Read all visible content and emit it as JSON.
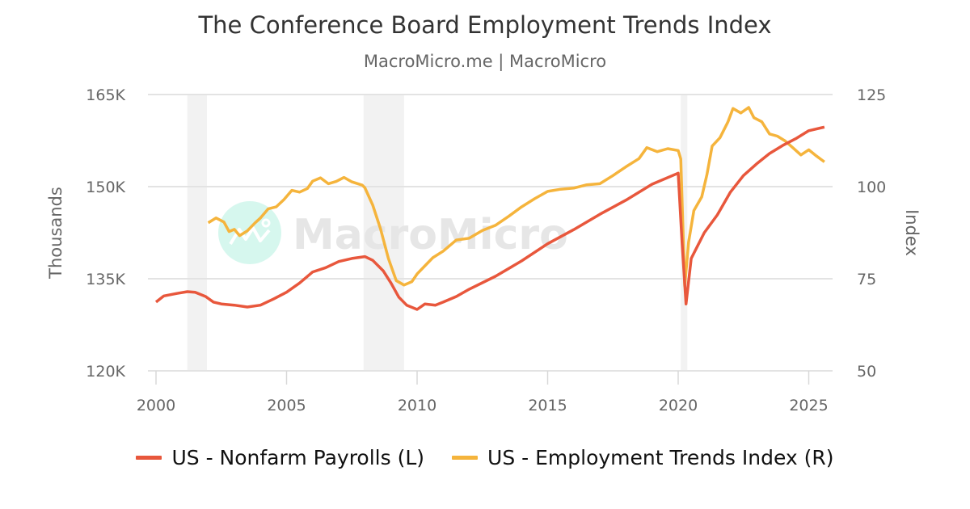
{
  "header": {
    "title": "The Conference Board Employment Trends Index",
    "subtitle": "MacroMicro.me | MacroMicro"
  },
  "watermark": {
    "text": "MacroMicro",
    "circle_color": "#d6f7ee"
  },
  "legend": [
    {
      "label": "US - Nonfarm Payrolls (L)",
      "color": "#e8573c"
    },
    {
      "label": "US - Employment Trends Index (R)",
      "color": "#f5b43c"
    }
  ],
  "chart_data": {
    "type": "line",
    "title": "The Conference Board Employment Trends Index",
    "subtitle": "MacroMicro.me | MacroMicro",
    "xlabel": "",
    "ylabel_left": "Thousands",
    "ylabel_right": "Index",
    "x_ticks": [
      "2000",
      "2005",
      "2010",
      "2015",
      "2020",
      "2025"
    ],
    "y_left_ticks": [
      "120K",
      "135K",
      "150K",
      "165K"
    ],
    "y_left_range": [
      120,
      165
    ],
    "y_right_ticks": [
      "50",
      "75",
      "100",
      "125"
    ],
    "y_right_range": [
      50,
      125
    ],
    "x_range": [
      2000,
      2025.9
    ],
    "grid": true,
    "legend_position": "bottom",
    "recession_bands": [
      [
        2001.2,
        2001.95
      ],
      [
        2007.95,
        2009.5
      ],
      [
        2020.1,
        2020.35
      ]
    ],
    "series": [
      {
        "name": "US - Nonfarm Payrolls (L)",
        "axis": "left",
        "unit": "thousands (K)",
        "color": "#e8573c",
        "x": [
          2000.0,
          2000.3,
          2000.8,
          2001.2,
          2001.5,
          2001.9,
          2002.2,
          2002.5,
          2003.0,
          2003.5,
          2004.0,
          2004.5,
          2005.0,
          2005.5,
          2006.0,
          2006.5,
          2007.0,
          2007.5,
          2008.0,
          2008.3,
          2008.7,
          2009.0,
          2009.3,
          2009.6,
          2010.0,
          2010.3,
          2010.7,
          2011.0,
          2011.5,
          2012.0,
          2013.0,
          2014.0,
          2015.0,
          2016.0,
          2017.0,
          2018.0,
          2019.0,
          2020.0,
          2020.15,
          2020.3,
          2020.5,
          2021.0,
          2021.5,
          2022.0,
          2022.5,
          2023.0,
          2023.5,
          2024.0,
          2024.5,
          2025.0,
          2025.6
        ],
        "values": [
          131.2,
          132.2,
          132.6,
          132.9,
          132.8,
          132.1,
          131.2,
          130.9,
          130.7,
          130.4,
          130.7,
          131.7,
          132.8,
          134.3,
          136.1,
          136.8,
          137.8,
          138.3,
          138.6,
          138.0,
          136.3,
          134.3,
          132.0,
          130.7,
          130.0,
          130.9,
          130.7,
          131.2,
          132.1,
          133.3,
          135.4,
          137.9,
          140.7,
          143.0,
          145.5,
          147.8,
          150.4,
          152.2,
          140.9,
          130.9,
          138.3,
          142.5,
          145.4,
          149.1,
          151.8,
          153.7,
          155.4,
          156.7,
          157.8,
          159.1,
          159.7
        ]
      },
      {
        "name": "US - Employment Trends Index (R)",
        "axis": "right",
        "unit": "index",
        "color": "#f5b43c",
        "x": [
          2002.0,
          2002.3,
          2002.6,
          2002.8,
          2003.0,
          2003.2,
          2003.5,
          2003.8,
          2004.0,
          2004.3,
          2004.6,
          2004.9,
          2005.2,
          2005.5,
          2005.8,
          2006.0,
          2006.3,
          2006.6,
          2006.9,
          2007.2,
          2007.5,
          2007.9,
          2008.0,
          2008.3,
          2008.6,
          2008.9,
          2009.2,
          2009.5,
          2009.8,
          2010.0,
          2010.3,
          2010.6,
          2011.0,
          2011.5,
          2012.0,
          2012.5,
          2013.0,
          2013.5,
          2014.0,
          2014.5,
          2015.0,
          2015.5,
          2016.0,
          2016.5,
          2017.0,
          2017.5,
          2018.0,
          2018.5,
          2018.8,
          2019.2,
          2019.6,
          2020.0,
          2020.1,
          2020.25,
          2020.4,
          2020.6,
          2020.9,
          2021.1,
          2021.3,
          2021.6,
          2021.9,
          2022.1,
          2022.4,
          2022.7,
          2022.9,
          2023.2,
          2023.5,
          2023.8,
          2024.1,
          2024.4,
          2024.7,
          2025.0,
          2025.3,
          2025.6
        ],
        "values": [
          90.2,
          91.5,
          90.4,
          87.8,
          88.4,
          86.7,
          88.0,
          90.2,
          91.5,
          94.0,
          94.5,
          96.5,
          99.0,
          98.5,
          99.5,
          101.5,
          102.4,
          100.8,
          101.4,
          102.5,
          101.3,
          100.4,
          99.7,
          95.0,
          88.5,
          80.5,
          74.5,
          73.3,
          74.2,
          76.3,
          78.5,
          80.7,
          82.5,
          85.5,
          86.0,
          88.1,
          89.5,
          91.9,
          94.5,
          96.7,
          98.7,
          99.3,
          99.6,
          100.5,
          100.8,
          103.0,
          105.4,
          107.6,
          110.6,
          109.5,
          110.3,
          109.8,
          107.5,
          73.0,
          85.0,
          93.5,
          97.2,
          103.2,
          111.0,
          113.3,
          117.5,
          121.2,
          120.0,
          121.5,
          118.7,
          117.6,
          114.3,
          113.7,
          112.4,
          110.5,
          108.6,
          110.0,
          108.3,
          106.7
        ]
      }
    ]
  }
}
